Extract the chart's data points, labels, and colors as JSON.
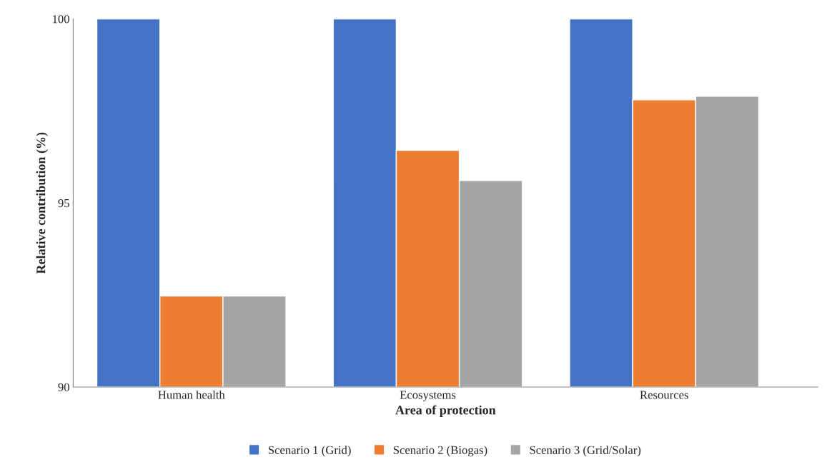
{
  "chart_data": {
    "type": "bar",
    "xlabel": "Area of protection",
    "ylabel": "Relative contribution (%)",
    "categories": [
      "Human health",
      "Ecosystems",
      "Resources"
    ],
    "series": [
      {
        "name": "Scenario 1 (Grid)",
        "color": "#4472c4",
        "values": [
          100,
          100,
          100
        ]
      },
      {
        "name": "Scenario 2 (Biogas)",
        "color": "#ed7d31",
        "values": [
          92.47,
          96.43,
          97.8
        ]
      },
      {
        "name": "Scenario 3 (Grid/Solar)",
        "color": "#a5a5a5",
        "values": [
          92.47,
          95.61,
          97.9
        ]
      }
    ],
    "ylim": [
      90,
      100
    ],
    "yticks": [
      90,
      95,
      100
    ],
    "grid": false,
    "legend": "bottom"
  }
}
